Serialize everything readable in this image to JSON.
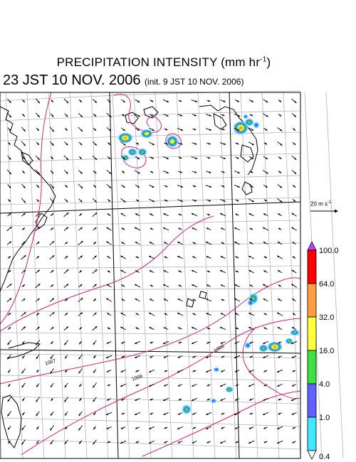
{
  "title": {
    "main": "PRECIPITATION INTENSITY (mm hr",
    "sup": "-1",
    "close": ")"
  },
  "subtitle": {
    "time": "23 JST 10 NOV. 2006",
    "init": "(init. 9 JST 10 NOV. 2006)"
  },
  "wind_scale": {
    "label": "20 m s",
    "sup": "-1"
  },
  "legend": {
    "labels": [
      "100.0",
      "64.0",
      "32.0",
      "16.0",
      "4.0",
      "1.0",
      "0.4"
    ],
    "colors": [
      "#ff0000",
      "#ffa040",
      "#ffff40",
      "#40e040",
      "#6060ff",
      "#40e8ff"
    ],
    "top_color": "#c040ff"
  },
  "map": {
    "isobar_labels": [
      "1007",
      "1006",
      "1006"
    ],
    "colors": {
      "isobar": "#e0207a",
      "grid": "#b4b4b4",
      "coast": "#000000",
      "frame": "#000000"
    }
  }
}
